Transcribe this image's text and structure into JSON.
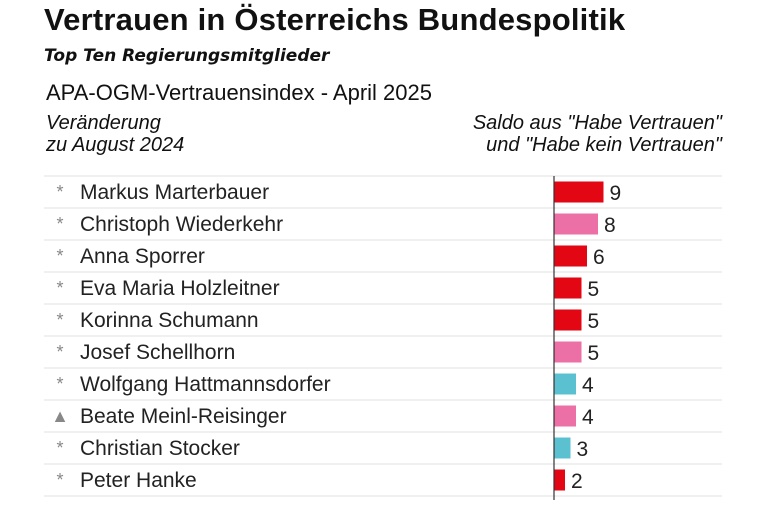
{
  "header": {
    "title": "Vertrauen in Österreichs Bundespolitik",
    "subtitle": "Top Ten Regierungsmitglieder",
    "source": "APA-OGM-Vertrauensindex - April 2025",
    "change_label_line1": "Veränderung",
    "change_label_line2": "zu August 2024",
    "saldo_label_line1": "Saldo aus \"Habe Vertrauen\"",
    "saldo_label_line2": "und \"Habe kein Vertrauen\""
  },
  "colors": {
    "red": "#e30613",
    "pink": "#ec6fa6",
    "teal": "#5bc0d0",
    "axis": "#333333"
  },
  "chart_data": {
    "type": "bar",
    "orientation": "horizontal",
    "xlim": [
      0,
      10
    ],
    "categories": [
      "Markus Marterbauer",
      "Christoph Wiederkehr",
      "Anna Sporrer",
      "Eva Maria Holzleitner",
      "Korinna Schumann",
      "Josef Schellhorn",
      "Wolfgang Hattmannsdorfer",
      "Beate Meinl-Reisinger",
      "Christian Stocker",
      "Peter Hanke"
    ],
    "values": [
      9,
      8,
      6,
      5,
      5,
      5,
      4,
      4,
      3,
      2
    ],
    "change_markers": [
      "*",
      "*",
      "*",
      "*",
      "*",
      "*",
      "*",
      "▲",
      "*",
      "*"
    ],
    "bar_colors": [
      "red",
      "pink",
      "red",
      "red",
      "red",
      "pink",
      "teal",
      "pink",
      "teal",
      "red"
    ]
  }
}
